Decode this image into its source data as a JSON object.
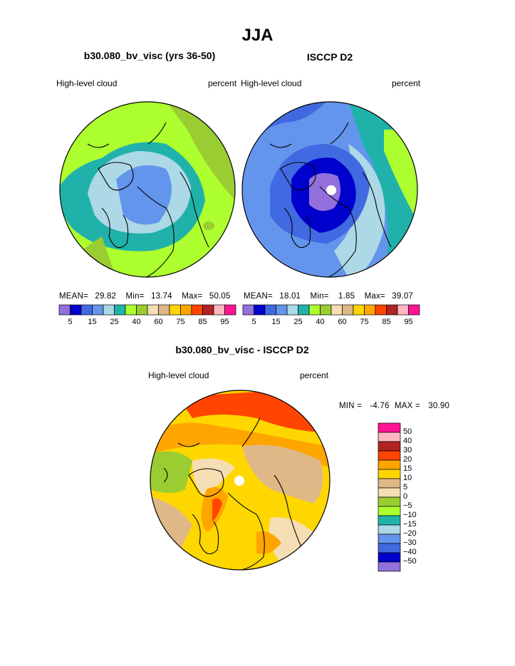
{
  "title": "JJA",
  "panels": [
    {
      "subtitle": "b30.080_bv_visc (yrs 36-50)",
      "left_label": "High-level cloud",
      "right_label": "percent",
      "stats": {
        "mean_label": "MEAN=",
        "mean": "29.82",
        "min_label": "Min=",
        "min": "13.74",
        "max_label": "Max=",
        "max": "50.05"
      }
    },
    {
      "subtitle": "ISCCP D2",
      "left_label": "High-level cloud",
      "right_label": "percent",
      "stats": {
        "mean_label": "MEAN=",
        "mean": "18.01",
        "min_label": "Min=",
        "min": "1.85",
        "max_label": "Max=",
        "max": "39.07"
      }
    }
  ],
  "colorbar_top": {
    "colors": [
      "#9370db",
      "#0000cd",
      "#4169e1",
      "#6495ed",
      "#add8e6",
      "#20b2aa",
      "#adff2f",
      "#9acd32",
      "#f5deb3",
      "#deb887",
      "#ffd700",
      "#ffa500",
      "#ff4500",
      "#b22222",
      "#ffb6c1",
      "#ff1493"
    ],
    "tick_labels": [
      "5",
      "15",
      "25",
      "40",
      "60",
      "75",
      "85",
      "95"
    ]
  },
  "diff_panel": {
    "subtitle": "b30.080_bv_visc - ISCCP D2",
    "left_label": "High-level cloud",
    "right_label": "percent",
    "stats": {
      "min_label": "MIN =",
      "min": "-4.76",
      "max_label": "MAX =",
      "max": "30.90"
    }
  },
  "colorbar_diff": {
    "colors": [
      "#ff1493",
      "#ffb6c1",
      "#b22222",
      "#ff4500",
      "#ffa500",
      "#ffd700",
      "#deb887",
      "#f5deb3",
      "#9acd32",
      "#adff2f",
      "#20b2aa",
      "#add8e6",
      "#6495ed",
      "#4169e1",
      "#0000cd",
      "#9370db"
    ],
    "labels": [
      "50",
      "40",
      "30",
      "20",
      "15",
      "10",
      "5",
      "0",
      "−5",
      "−10",
      "−15",
      "−20",
      "−30",
      "−40",
      "−50"
    ]
  },
  "chart_data": [
    {
      "type": "heatmap",
      "projection": "north polar stereographic",
      "title": "b30.080_bv_visc (yrs 36-50)",
      "field": "High-level cloud",
      "units": "percent",
      "mean": 29.82,
      "min": 13.74,
      "max": 50.05,
      "levels": [
        5,
        10,
        15,
        20,
        25,
        30,
        40,
        50,
        60,
        70,
        75,
        80,
        85,
        90,
        95
      ]
    },
    {
      "type": "heatmap",
      "projection": "north polar stereographic",
      "title": "ISCCP D2",
      "field": "High-level cloud",
      "units": "percent",
      "mean": 18.01,
      "min": 1.85,
      "max": 39.07,
      "levels": [
        5,
        10,
        15,
        20,
        25,
        30,
        40,
        50,
        60,
        70,
        75,
        80,
        85,
        90,
        95
      ]
    },
    {
      "type": "heatmap",
      "projection": "north polar stereographic",
      "title": "b30.080_bv_visc - ISCCP D2",
      "field": "High-level cloud",
      "units": "percent",
      "min": -4.76,
      "max": 30.9,
      "levels": [
        -50,
        -40,
        -30,
        -20,
        -15,
        -10,
        -5,
        0,
        5,
        10,
        15,
        20,
        30,
        40,
        50
      ]
    }
  ]
}
